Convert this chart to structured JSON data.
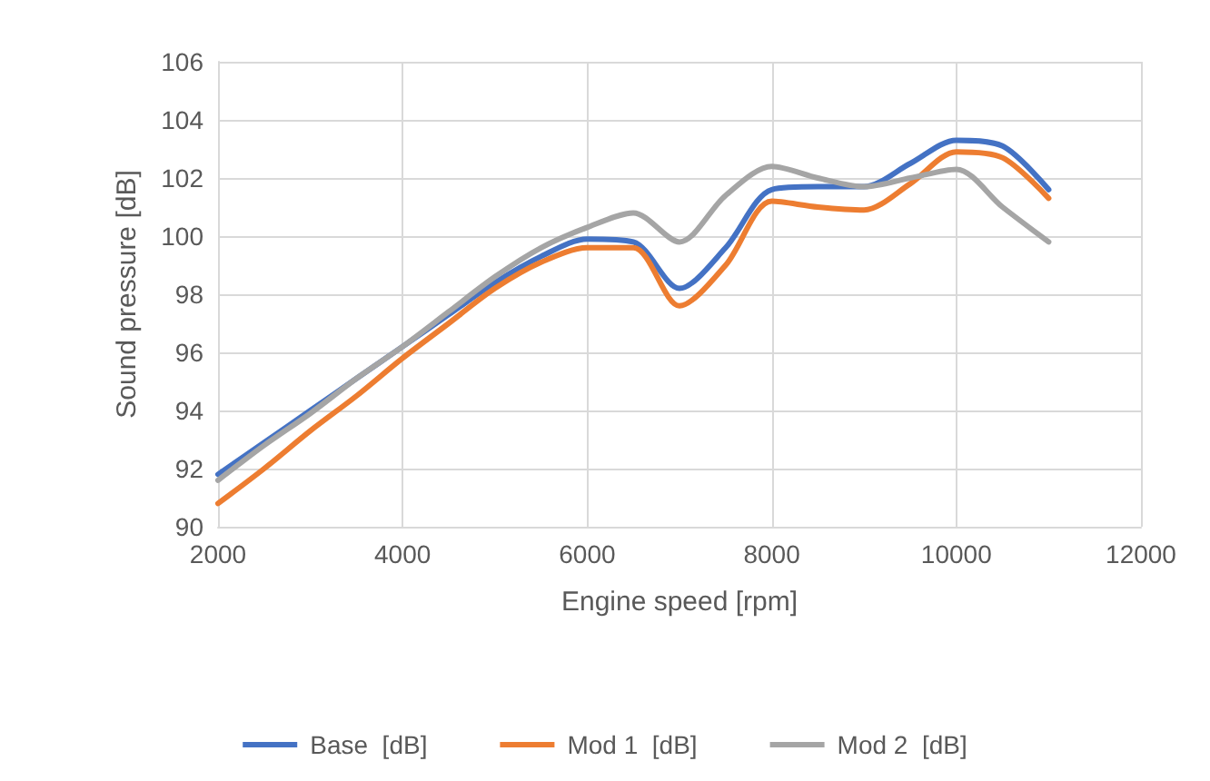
{
  "chart_data": {
    "type": "line",
    "xlabel": "Engine speed [rpm]",
    "ylabel": "Sound pressure [dB]",
    "x": [
      2000,
      2500,
      3000,
      3500,
      4000,
      4500,
      5000,
      5500,
      6000,
      6500,
      7000,
      7500,
      8000,
      8500,
      9000,
      9500,
      10000,
      10500,
      11000
    ],
    "series": [
      {
        "name": "Base  [dB]",
        "color": "#4472c4",
        "values": [
          91.8,
          92.9,
          94.0,
          95.1,
          96.2,
          97.3,
          98.4,
          99.3,
          99.9,
          99.8,
          98.2,
          99.6,
          101.6,
          101.7,
          101.7,
          102.5,
          103.3,
          103.1,
          101.6
        ]
      },
      {
        "name": "Mod 1  [dB]",
        "color": "#ed7d31",
        "values": [
          90.8,
          92.0,
          93.3,
          94.5,
          95.8,
          97.0,
          98.2,
          99.1,
          99.6,
          99.6,
          97.6,
          99.0,
          101.2,
          101.0,
          100.9,
          101.8,
          102.9,
          102.7,
          101.3
        ]
      },
      {
        "name": "Mod 2  [dB]",
        "color": "#a5a5a5",
        "values": [
          91.6,
          92.8,
          93.9,
          95.1,
          96.2,
          97.4,
          98.6,
          99.6,
          100.3,
          100.8,
          99.8,
          101.4,
          102.4,
          102.0,
          101.7,
          102.0,
          102.3,
          101.0,
          99.8
        ]
      }
    ],
    "xlim": [
      2000,
      12000
    ],
    "xticks": [
      2000,
      4000,
      6000,
      8000,
      10000,
      12000
    ],
    "ylim": [
      90,
      106
    ],
    "yticks": [
      90,
      92,
      94,
      96,
      98,
      100,
      102,
      104,
      106
    ],
    "grid": true,
    "legend": "bottom",
    "marker": "none",
    "line_style": "solid"
  }
}
